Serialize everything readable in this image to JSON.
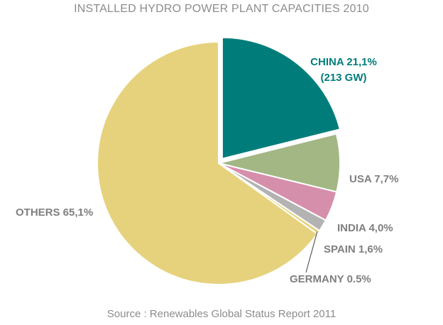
{
  "chart_data": {
    "type": "pie",
    "title": "INSTALLED HYDRO POWER PLANT CAPACITIES  2010",
    "source": "Source : Renewables Global  Status Report 2011",
    "slices": [
      {
        "name": "CHINA",
        "value": 21.1,
        "label_lines": [
          "CHINA 21,1%",
          "(213 GW)"
        ],
        "color": "#007d7a",
        "label_color": "#007d7a"
      },
      {
        "name": "USA",
        "value": 7.7,
        "label_lines": [
          "USA 7,7%"
        ],
        "color": "#a2b784",
        "label_color": "#7f7f7f"
      },
      {
        "name": "INDIA",
        "value": 4.0,
        "label_lines": [
          "INDIA 4,0%"
        ],
        "color": "#d58fab",
        "label_color": "#7f7f7f"
      },
      {
        "name": "SPAIN",
        "value": 1.6,
        "label_lines": [
          "SPAIN 1,6%"
        ],
        "color": "#b3b3b3",
        "label_color": "#7f7f7f"
      },
      {
        "name": "GERMANY",
        "value": 0.5,
        "label_lines": [
          "GERMANY 0.5%"
        ],
        "color": "#e6d27c",
        "label_color": "#7f7f7f"
      },
      {
        "name": "OTHERS",
        "value": 65.1,
        "label_lines": [
          "OTHERS 65,1%"
        ],
        "color": "#e6d27c",
        "label_color": "#7f7f7f"
      }
    ],
    "start_angle": "top",
    "direction": "clockwise",
    "exploded": "CHINA"
  }
}
